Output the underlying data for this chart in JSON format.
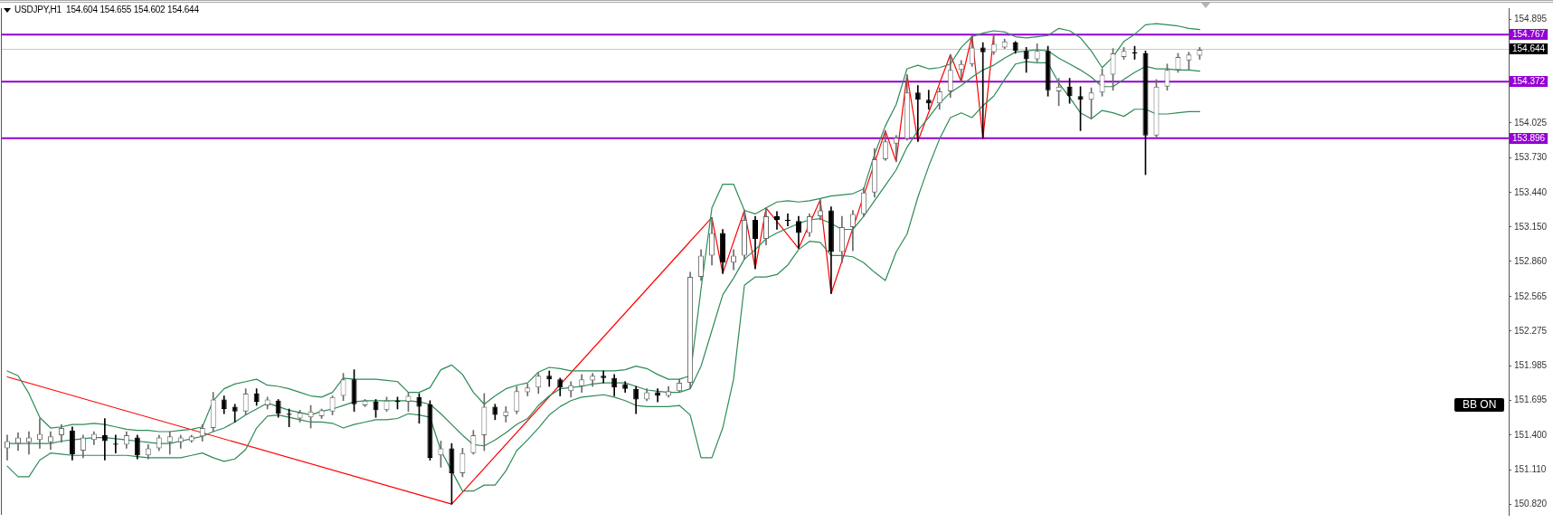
{
  "chart_data": {
    "type": "candlestick",
    "title": "USDJPY,H1  154.604 154.655 154.602 154.644",
    "categories": [
      null,
      null,
      null,
      null,
      null,
      null,
      null,
      null,
      null,
      null,
      null,
      null,
      null,
      null,
      null,
      null,
      null,
      null,
      null,
      null,
      null,
      null,
      null,
      null,
      null,
      null,
      null,
      null,
      null,
      null,
      null,
      null,
      null,
      null,
      null,
      null,
      null,
      null,
      null,
      null,
      null,
      null,
      null,
      null,
      null,
      null,
      null,
      null,
      null,
      null,
      null,
      null,
      null,
      null,
      null,
      null,
      null,
      null,
      null,
      null,
      null,
      null,
      null,
      null,
      null,
      null,
      null,
      null,
      null,
      null,
      null,
      null,
      null,
      null,
      null,
      null,
      null,
      null,
      null,
      null,
      null,
      null,
      null,
      null,
      null,
      null,
      null,
      null,
      null,
      null,
      null,
      null,
      null,
      null,
      null,
      null,
      null,
      null,
      null,
      null,
      null,
      null,
      null,
      null,
      null,
      null,
      null,
      null,
      null,
      null,
      null
    ],
    "ohlc": [
      [
        151.29,
        151.4,
        151.19,
        151.35
      ],
      [
        151.33,
        151.42,
        151.27,
        151.38
      ],
      [
        151.34,
        151.43,
        151.24,
        151.38
      ],
      [
        151.36,
        151.54,
        151.29,
        151.41
      ],
      [
        151.34,
        151.43,
        151.28,
        151.39
      ],
      [
        151.4,
        151.49,
        151.34,
        151.46
      ],
      [
        151.44,
        151.47,
        151.19,
        151.24
      ],
      [
        151.27,
        151.4,
        151.21,
        151.38
      ],
      [
        151.36,
        151.43,
        151.32,
        151.41
      ],
      [
        151.4,
        151.54,
        151.19,
        151.35
      ],
      [
        151.33,
        151.4,
        151.25,
        151.32
      ],
      [
        151.32,
        151.43,
        151.29,
        151.4
      ],
      [
        151.38,
        151.4,
        151.2,
        151.23
      ],
      [
        151.23,
        151.32,
        151.2,
        151.29
      ],
      [
        151.29,
        151.4,
        151.27,
        151.38
      ],
      [
        151.34,
        151.43,
        151.24,
        151.39
      ],
      [
        151.34,
        151.4,
        151.29,
        151.38
      ],
      [
        151.35,
        151.4,
        151.34,
        151.39
      ],
      [
        151.39,
        151.49,
        151.35,
        151.46
      ],
      [
        151.46,
        151.76,
        151.43,
        151.7
      ],
      [
        151.7,
        151.73,
        151.58,
        151.62
      ],
      [
        151.64,
        151.66,
        151.51,
        151.6
      ],
      [
        151.6,
        151.79,
        151.57,
        151.75
      ],
      [
        151.75,
        151.79,
        151.65,
        151.68
      ],
      [
        151.65,
        151.72,
        151.62,
        151.7
      ],
      [
        151.69,
        151.7,
        151.55,
        151.58
      ],
      [
        151.58,
        151.62,
        151.47,
        151.57
      ],
      [
        151.54,
        151.61,
        151.51,
        151.59
      ],
      [
        151.55,
        151.65,
        151.46,
        151.6
      ],
      [
        151.56,
        151.62,
        151.54,
        151.61
      ],
      [
        151.6,
        151.73,
        151.57,
        151.72
      ],
      [
        151.73,
        151.92,
        151.69,
        151.87
      ],
      [
        151.87,
        151.95,
        151.6,
        151.66
      ],
      [
        151.65,
        151.7,
        151.64,
        151.69
      ],
      [
        151.68,
        151.7,
        151.55,
        151.61
      ],
      [
        151.61,
        151.72,
        151.6,
        151.69
      ],
      [
        151.69,
        151.72,
        151.62,
        151.68
      ],
      [
        151.68,
        151.76,
        151.6,
        151.73
      ],
      [
        151.72,
        151.75,
        151.5,
        151.64
      ],
      [
        151.66,
        151.69,
        151.19,
        151.21
      ],
      [
        151.23,
        151.35,
        151.13,
        151.29
      ],
      [
        151.29,
        151.33,
        150.82,
        151.08
      ],
      [
        151.08,
        151.29,
        151.05,
        151.25
      ],
      [
        151.25,
        151.44,
        151.24,
        151.4
      ],
      [
        151.4,
        151.75,
        151.27,
        151.64
      ],
      [
        151.64,
        151.66,
        151.53,
        151.57
      ],
      [
        151.56,
        151.64,
        151.51,
        151.6
      ],
      [
        151.6,
        151.81,
        151.58,
        151.77
      ],
      [
        151.76,
        151.83,
        151.73,
        151.8
      ],
      [
        151.8,
        151.92,
        151.75,
        151.9
      ],
      [
        151.9,
        151.94,
        151.81,
        151.87
      ],
      [
        151.87,
        151.88,
        151.73,
        151.8
      ],
      [
        151.77,
        151.85,
        151.72,
        151.82
      ],
      [
        151.81,
        151.91,
        151.76,
        151.87
      ],
      [
        151.86,
        151.92,
        151.81,
        151.9
      ],
      [
        151.9,
        151.94,
        151.84,
        151.88
      ],
      [
        151.88,
        151.91,
        151.73,
        151.8
      ],
      [
        151.83,
        151.85,
        151.76,
        151.79
      ],
      [
        151.79,
        151.81,
        151.58,
        151.7
      ],
      [
        151.7,
        151.79,
        151.69,
        151.76
      ],
      [
        151.76,
        151.79,
        151.68,
        151.73
      ],
      [
        151.73,
        151.81,
        151.72,
        151.77
      ],
      [
        151.77,
        151.87,
        151.76,
        151.84
      ],
      [
        151.84,
        152.77,
        151.79,
        152.73
      ],
      [
        152.73,
        152.96,
        152.7,
        152.91
      ],
      [
        152.91,
        153.23,
        152.83,
        153.1
      ],
      [
        153.1,
        153.13,
        152.76,
        152.85
      ],
      [
        152.85,
        152.96,
        152.79,
        152.91
      ],
      [
        152.91,
        153.29,
        152.88,
        153.21
      ],
      [
        153.21,
        153.24,
        152.8,
        153.05
      ],
      [
        153.05,
        153.31,
        153.0,
        153.24
      ],
      [
        153.24,
        153.28,
        153.13,
        153.21
      ],
      [
        153.21,
        153.26,
        153.16,
        153.2
      ],
      [
        153.2,
        153.24,
        152.97,
        153.1
      ],
      [
        153.1,
        153.26,
        153.07,
        153.24
      ],
      [
        153.24,
        153.38,
        153.21,
        153.29
      ],
      [
        153.29,
        153.32,
        152.59,
        152.94
      ],
      [
        152.94,
        153.24,
        152.85,
        153.15
      ],
      [
        153.15,
        153.29,
        152.95,
        153.26
      ],
      [
        153.26,
        153.48,
        153.24,
        153.44
      ],
      [
        153.44,
        153.81,
        153.4,
        153.72
      ],
      [
        153.72,
        153.96,
        153.71,
        153.87
      ],
      [
        153.85,
        153.92,
        153.7,
        153.9
      ],
      [
        153.89,
        154.43,
        153.88,
        154.28
      ],
      [
        154.28,
        154.34,
        153.87,
        154.22
      ],
      [
        154.22,
        154.3,
        154.14,
        154.19
      ],
      [
        154.19,
        154.32,
        154.14,
        154.29
      ],
      [
        154.29,
        154.6,
        154.24,
        154.47
      ],
      [
        154.47,
        154.55,
        154.37,
        154.52
      ],
      [
        154.52,
        154.76,
        154.5,
        154.66
      ],
      [
        154.66,
        154.7,
        153.9,
        154.62
      ],
      [
        154.62,
        154.77,
        154.6,
        154.69
      ],
      [
        154.66,
        154.73,
        154.65,
        154.71
      ],
      [
        154.7,
        154.71,
        154.61,
        154.63
      ],
      [
        154.63,
        154.66,
        154.45,
        154.56
      ],
      [
        154.56,
        154.69,
        154.54,
        154.63
      ],
      [
        154.63,
        154.67,
        154.25,
        154.3
      ],
      [
        154.29,
        154.4,
        154.17,
        154.33
      ],
      [
        154.33,
        154.4,
        154.19,
        154.25
      ],
      [
        154.25,
        154.33,
        153.96,
        154.22
      ],
      [
        154.22,
        154.32,
        154.06,
        154.28
      ],
      [
        154.28,
        154.48,
        154.25,
        154.43
      ],
      [
        154.43,
        154.65,
        154.3,
        154.61
      ],
      [
        154.58,
        154.66,
        154.56,
        154.63
      ],
      [
        154.62,
        154.67,
        154.56,
        154.61
      ],
      [
        154.61,
        154.63,
        153.59,
        153.92
      ],
      [
        153.92,
        154.39,
        153.89,
        154.33
      ],
      [
        154.33,
        154.52,
        154.3,
        154.47
      ],
      [
        154.47,
        154.61,
        154.45,
        154.58
      ],
      [
        154.55,
        154.62,
        154.47,
        154.6
      ],
      [
        154.59,
        154.66,
        154.56,
        154.64
      ]
    ],
    "colors": [
      "#6a6a6a",
      "#6a6a6a",
      "#6a6a6a",
      "#6a6a6a",
      "#6a6a6a",
      "#6a6a6a",
      "#000000",
      "#6a6a6a",
      "#6a6a6a",
      "#000000",
      "#000000",
      "#6a6a6a",
      "#000000",
      "#6a6a6a",
      "#6a6a6a",
      "#6a6a6a",
      "#6a6a6a",
      "#6a6a6a",
      "#6a6a6a",
      "#6a6a6a",
      "#000000",
      "#000000",
      "#6a6a6a",
      "#000000",
      "#6a6a6a",
      "#000000",
      "#000000",
      "#6a6a6a",
      "#6a6a6a",
      "#6a6a6a",
      "#6a6a6a",
      "#6a6a6a",
      "#000000",
      "#6a6a6a",
      "#000000",
      "#6a6a6a",
      "#000000",
      "#6a6a6a",
      "#000000",
      "#000000",
      "#6a6a6a",
      "#000000",
      "#6a6a6a",
      "#6a6a6a",
      "#6a6a6a",
      "#000000",
      "#6a6a6a",
      "#6a6a6a",
      "#6a6a6a",
      "#6a6a6a",
      "#000000",
      "#000000",
      "#6a6a6a",
      "#6a6a6a",
      "#6a6a6a",
      "#000000",
      "#000000",
      "#000000",
      "#000000",
      "#6a6a6a",
      "#000000",
      "#6a6a6a",
      "#6a6a6a",
      "#6a6a6a",
      "#6a6a6a",
      "#6a6a6a",
      "#000000",
      "#6a6a6a",
      "#6a6a6a",
      "#000000",
      "#6a6a6a",
      "#000000",
      "#000000",
      "#000000",
      "#6a6a6a",
      "#6a6a6a",
      "#000000",
      "#6a6a6a",
      "#6a6a6a",
      "#6a6a6a",
      "#6a6a6a",
      "#6a6a6a",
      "#6a6a6a",
      "#6a6a6a",
      "#000000",
      "#000000",
      "#6a6a6a",
      "#6a6a6a",
      "#6a6a6a",
      "#6a6a6a",
      "#000000",
      "#6a6a6a",
      "#6a6a6a",
      "#000000",
      "#000000",
      "#6a6a6a",
      "#000000",
      "#6a6a6a",
      "#000000",
      "#000000",
      "#6a6a6a",
      "#6a6a6a",
      "#6a6a6a",
      "#6a6a6a",
      "#000000",
      "#000000",
      "#6a6a6a",
      "#6a6a6a",
      "#6a6a6a",
      "#6a6a6a",
      "#6a6a6a"
    ],
    "series": [
      {
        "type": "line",
        "color": "#2e8b57",
        "values": [
          151.94,
          151.9,
          151.75,
          151.55,
          151.46,
          151.47,
          151.49,
          151.49,
          151.5,
          151.49,
          151.47,
          151.45,
          151.44,
          151.44,
          151.43,
          151.43,
          151.44,
          151.45,
          151.47,
          151.69,
          151.79,
          151.83,
          151.85,
          151.87,
          151.82,
          151.81,
          151.79,
          151.76,
          151.73,
          151.72,
          151.76,
          151.88,
          151.87,
          151.87,
          151.87,
          151.86,
          151.85,
          151.76,
          151.76,
          151.8,
          151.95,
          151.99,
          151.91,
          151.76,
          151.66,
          151.73,
          151.79,
          151.82,
          151.84,
          151.93,
          151.97,
          151.96,
          151.94,
          151.94,
          151.94,
          151.94,
          151.94,
          151.95,
          151.98,
          151.96,
          151.91,
          151.87,
          151.87,
          151.9,
          152.63,
          153.31,
          153.51,
          153.51,
          153.29,
          153.26,
          153.31,
          153.36,
          153.37,
          153.36,
          153.37,
          153.39,
          153.41,
          153.42,
          153.43,
          153.47,
          153.76,
          154.0,
          154.18,
          154.48,
          154.51,
          154.48,
          154.49,
          154.52,
          154.66,
          154.75,
          154.78,
          154.8,
          154.79,
          154.75,
          154.74,
          154.75,
          154.76,
          154.82,
          154.8,
          154.74,
          154.63,
          154.49,
          154.58,
          154.71,
          154.77,
          154.85,
          154.86,
          154.85,
          154.84,
          154.82,
          154.81
        ]
      },
      {
        "type": "line",
        "color": "#2e8b57",
        "values": [
          151.33,
          151.33,
          151.33,
          151.33,
          151.33,
          151.35,
          151.36,
          151.37,
          151.38,
          151.38,
          151.37,
          151.36,
          151.35,
          151.34,
          151.33,
          151.33,
          151.35,
          151.37,
          151.39,
          151.43,
          151.46,
          151.51,
          151.57,
          151.62,
          151.67,
          151.64,
          151.61,
          151.59,
          151.57,
          151.6,
          151.62,
          151.65,
          151.68,
          151.69,
          151.69,
          151.69,
          151.69,
          151.69,
          151.68,
          151.66,
          151.58,
          151.49,
          151.4,
          151.32,
          151.31,
          151.36,
          151.42,
          151.49,
          151.54,
          151.65,
          151.73,
          151.79,
          151.8,
          151.81,
          151.83,
          151.84,
          151.84,
          151.84,
          151.81,
          151.78,
          151.77,
          151.76,
          151.76,
          151.79,
          151.98,
          152.28,
          152.58,
          152.72,
          152.88,
          152.96,
          153.05,
          153.1,
          153.14,
          153.18,
          153.21,
          153.22,
          153.18,
          153.13,
          153.13,
          153.24,
          153.37,
          153.5,
          153.63,
          153.82,
          153.96,
          154.07,
          154.19,
          154.28,
          154.34,
          154.41,
          154.47,
          154.51,
          154.57,
          154.62,
          154.63,
          154.64,
          154.63,
          154.57,
          154.52,
          154.47,
          154.41,
          154.33,
          154.33,
          154.39,
          154.45,
          154.5,
          154.48,
          154.48,
          154.47,
          154.47,
          154.46
        ]
      },
      {
        "type": "line",
        "color": "#2e8b57",
        "values": [
          151.14,
          151.05,
          151.05,
          151.19,
          151.25,
          151.24,
          151.23,
          151.23,
          151.23,
          151.23,
          151.23,
          151.23,
          151.22,
          151.21,
          151.21,
          151.21,
          151.21,
          151.23,
          151.25,
          151.21,
          151.18,
          151.2,
          151.28,
          151.46,
          151.56,
          151.57,
          151.55,
          151.53,
          151.51,
          151.51,
          151.5,
          151.46,
          151.49,
          151.51,
          151.53,
          151.53,
          151.54,
          151.58,
          151.57,
          151.55,
          151.27,
          151.1,
          150.93,
          150.93,
          150.98,
          150.98,
          151.1,
          151.27,
          151.36,
          151.46,
          151.57,
          151.64,
          151.69,
          151.72,
          151.73,
          151.74,
          151.72,
          151.69,
          151.65,
          151.64,
          151.64,
          151.64,
          151.65,
          151.57,
          151.21,
          151.21,
          151.46,
          151.87,
          152.66,
          152.73,
          152.73,
          152.75,
          152.83,
          152.96,
          153.03,
          153.02,
          152.91,
          152.91,
          152.9,
          152.85,
          152.77,
          152.7,
          152.94,
          153.09,
          153.4,
          153.66,
          153.89,
          154.07,
          154.11,
          154.07,
          154.17,
          154.25,
          154.39,
          154.52,
          154.54,
          154.53,
          154.53,
          154.36,
          154.24,
          154.11,
          154.06,
          154.13,
          154.11,
          154.08,
          154.14,
          154.14,
          154.1,
          154.1,
          154.11,
          154.12,
          154.12
        ]
      },
      {
        "type": "line",
        "color": "#ff0000",
        "values": [
          151.89,
          null,
          null,
          null,
          null,
          null,
          null,
          null,
          null,
          null,
          null,
          null,
          null,
          null,
          null,
          null,
          null,
          null,
          null,
          null,
          null,
          null,
          null,
          null,
          null,
          null,
          null,
          null,
          null,
          null,
          null,
          null,
          null,
          null,
          null,
          null,
          null,
          null,
          null,
          null,
          null,
          150.82,
          null,
          null,
          null,
          null,
          null,
          null,
          null,
          null,
          null,
          null,
          null,
          null,
          null,
          null,
          null,
          null,
          null,
          null,
          null,
          null,
          null,
          null,
          null,
          153.23,
          152.76,
          null,
          153.29,
          152.8,
          153.31,
          null,
          null,
          152.97,
          null,
          153.38,
          152.59,
          null,
          null,
          null,
          null,
          153.96,
          153.7,
          154.43,
          153.87,
          null,
          null,
          154.6,
          154.37,
          154.76,
          153.89,
          154.77,
          null,
          null,
          null,
          null,
          null,
          null,
          null,
          null,
          null,
          null,
          null,
          null,
          null,
          null,
          null,
          null,
          null,
          null,
          null
        ]
      }
    ],
    "ylim": [
      150.73,
      154.99
    ],
    "yticks": [
      154.895,
      154.025,
      {
        "value": 153.73,
        "label": "153.730"
      },
      {
        "value": 153.44,
        "label": "153.440"
      },
      {
        "value": 153.15,
        "label": "153.150"
      },
      {
        "value": 152.86,
        "label": "152.860"
      },
      152.565,
      152.275,
      151.985,
      151.695,
      {
        "value": 151.4,
        "label": "151.400"
      },
      {
        "value": 151.11,
        "label": "151.110"
      },
      {
        "value": 150.82,
        "label": "150.820"
      }
    ],
    "ref_lines": [
      {
        "axis": "y",
        "value": 154.767,
        "label": "154.767",
        "color": "#9400d3"
      },
      {
        "axis": "y",
        "value": 154.644,
        "label": "154.644",
        "color": "#c8c8c8"
      },
      {
        "axis": "y",
        "value": 154.372,
        "label": "154.372",
        "color": "#9400d3"
      },
      {
        "axis": "y",
        "value": 153.896,
        "label": "153.896",
        "color": "#9400d3"
      }
    ],
    "annotations": [
      "BB ON"
    ],
    "grid": false,
    "legend": false,
    "marker": "none",
    "line_style": "solid",
    "tick_labels": "y"
  }
}
